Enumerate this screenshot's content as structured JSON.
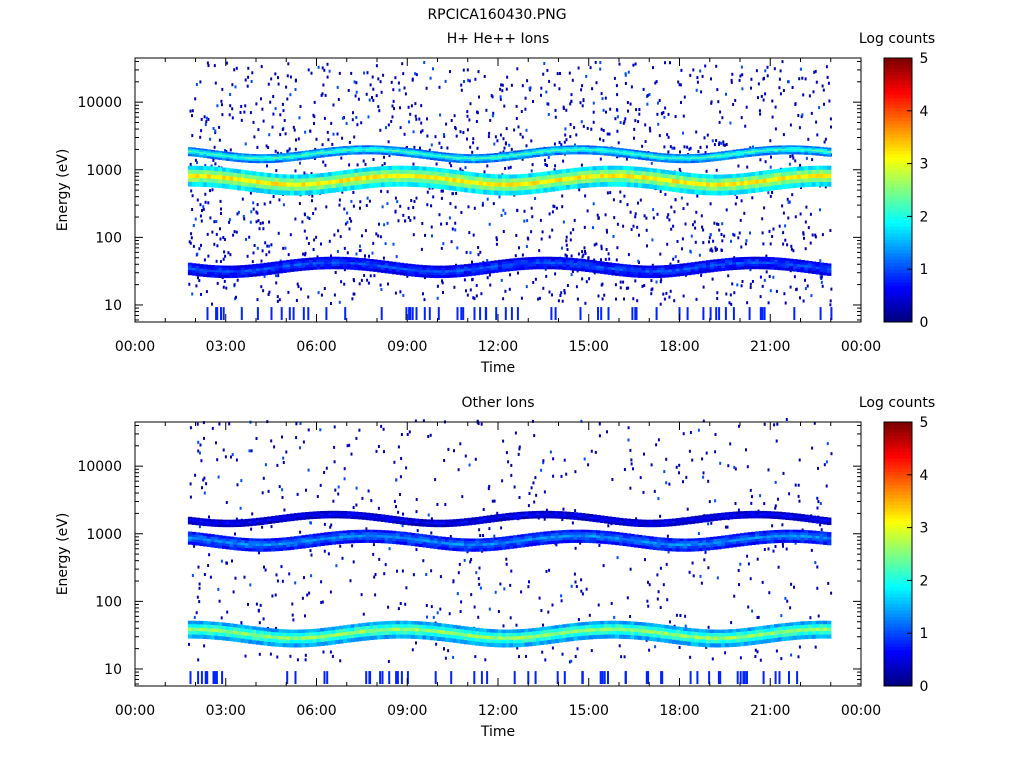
{
  "page_title": "RPCICA160430.PNG",
  "colors": {
    "colormap": [
      "#00007f",
      "#0000ff",
      "#0080ff",
      "#00ffff",
      "#80ff80",
      "#ffff00",
      "#ff8000",
      "#ff0000",
      "#7f0000"
    ],
    "frame": "#000000",
    "background": "#ffffff"
  },
  "chart_data": [
    {
      "type": "heatmap",
      "title": "H+ He++ Ions",
      "xlabel": "Time",
      "ylabel": "Energy (eV)",
      "y_scale": "log",
      "xlim": [
        "00:00",
        "00:00"
      ],
      "x_ticks": [
        "00:00",
        "03:00",
        "06:00",
        "09:00",
        "12:00",
        "15:00",
        "18:00",
        "21:00",
        "00:00"
      ],
      "y_ticks": [
        "10",
        "100",
        "1000",
        "10000"
      ],
      "colorbar": {
        "label": "Log counts",
        "range": [
          0,
          5
        ],
        "ticks": [
          "0",
          "1",
          "2",
          "3",
          "4",
          "5"
        ]
      },
      "data_time_range": [
        "01:45",
        "23:00"
      ],
      "bands": [
        {
          "name": "",
          "energy_eV": [
            500,
            1000
          ],
          "log_counts": 3.2
        },
        {
          "name": "",
          "energy_eV": [
            1500,
            2000
          ],
          "log_counts": 2.2
        },
        {
          "name": "",
          "energy_eV": [
            30,
            45
          ],
          "log_counts": 1.0
        }
      ]
    },
    {
      "type": "heatmap",
      "title": "Other Ions",
      "xlabel": "Time",
      "ylabel": "Energy (eV)",
      "y_scale": "log",
      "xlim": [
        "00:00",
        "00:00"
      ],
      "x_ticks": [
        "00:00",
        "03:00",
        "06:00",
        "09:00",
        "12:00",
        "15:00",
        "18:00",
        "21:00",
        "00:00"
      ],
      "y_ticks": [
        "10",
        "100",
        "1000",
        "10000"
      ],
      "colorbar": {
        "label": "Log counts",
        "range": [
          0,
          5
        ],
        "ticks": [
          "0",
          "1",
          "2",
          "3",
          "4",
          "5"
        ]
      },
      "data_time_range": [
        "01:45",
        "23:00"
      ],
      "bands": [
        {
          "name": "",
          "energy_eV": [
            25,
            45
          ],
          "log_counts": 2.6
        },
        {
          "name": "",
          "energy_eV": [
            650,
            1000
          ],
          "log_counts": 1.3
        },
        {
          "name": "",
          "energy_eV": [
            1500,
            1900
          ],
          "log_counts": 0.6
        }
      ]
    }
  ]
}
